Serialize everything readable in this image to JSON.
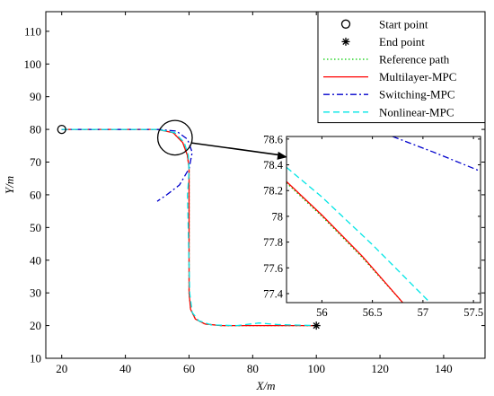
{
  "chart_data": {
    "type": "line",
    "xlabel": "X/m",
    "ylabel": "Y/m",
    "xlim": [
      15,
      153
    ],
    "ylim": [
      10,
      116
    ],
    "xticks": [
      20,
      40,
      60,
      80,
      100,
      120,
      140
    ],
    "yticks": [
      10,
      20,
      30,
      40,
      50,
      60,
      70,
      80,
      90,
      100,
      110
    ],
    "grid": false,
    "legend_position": "top-right",
    "legend": [
      {
        "label": "Start point",
        "marker": "circle",
        "color": "#000000"
      },
      {
        "label": "End point",
        "marker": "asterisk",
        "color": "#000000"
      },
      {
        "label": "Reference path",
        "style": "dotted",
        "color": "#00cc00"
      },
      {
        "label": "Multilayer-MPC",
        "style": "solid",
        "color": "#ff0000"
      },
      {
        "label": "Switching-MPC",
        "style": "dashdot",
        "color": "#0000cc"
      },
      {
        "label": "Nonlinear-MPC",
        "style": "dashed",
        "color": "#00e5e5"
      }
    ],
    "start_point": {
      "x": 20,
      "y": 80
    },
    "end_point": {
      "x": 100,
      "y": 20
    },
    "series": [
      {
        "name": "Reference path",
        "color": "#00cc00",
        "style": "dotted",
        "x": [
          20,
          50,
          55,
          58,
          59.5,
          60,
          60,
          60.5,
          62,
          65,
          70,
          100
        ],
        "y": [
          80,
          80,
          79,
          76,
          72,
          68,
          30,
          25,
          22,
          20.5,
          20,
          20
        ]
      },
      {
        "name": "Multilayer-MPC",
        "color": "#ff0000",
        "style": "solid",
        "x": [
          20,
          50,
          55,
          58,
          59.5,
          60,
          60,
          60.5,
          62,
          65,
          70,
          100
        ],
        "y": [
          80,
          80,
          79,
          76,
          72,
          68,
          30,
          25,
          22,
          20.5,
          20,
          20
        ]
      },
      {
        "name": "Switching-MPC",
        "color": "#0000cc",
        "style": "dashdot",
        "x": [
          20,
          50,
          56,
          59.5,
          61,
          60,
          57,
          53,
          50
        ],
        "y": [
          80,
          80,
          79.5,
          77,
          73,
          68,
          63,
          60,
          58
        ]
      },
      {
        "name": "Nonlinear-MPC",
        "color": "#00e5e5",
        "style": "dashed",
        "x": [
          20,
          50,
          55.5,
          58.5,
          59.8,
          60,
          59.5,
          60.2,
          61,
          63,
          67,
          75,
          82,
          88,
          100
        ],
        "y": [
          80,
          80,
          79,
          76,
          72,
          67,
          60,
          30,
          24,
          21.5,
          20.2,
          20,
          20.8,
          20.3,
          20
        ]
      }
    ],
    "zoom_region": {
      "center": [
        57,
        78
      ],
      "radius_x_units": 3.5
    },
    "inset": {
      "xlim": [
        55.65,
        57.57
      ],
      "ylim": [
        77.33,
        78.62
      ],
      "xticks": [
        56,
        56.5,
        57,
        57.5
      ],
      "yticks": [
        77.4,
        77.6,
        77.8,
        78,
        78.2,
        78.4,
        78.6
      ],
      "xtick_labels": [
        "56",
        "56.5",
        "57",
        "57.5"
      ],
      "ytick_labels": [
        "77.4",
        "77.6",
        "77.8",
        "78",
        "78.2",
        "78.4",
        "78.6"
      ],
      "series": [
        {
          "name": "Reference path",
          "color": "#00cc00",
          "style": "dotted",
          "x": [
            55.65,
            56.0,
            56.4,
            56.8
          ],
          "y": [
            78.26,
            78.0,
            77.68,
            77.33
          ]
        },
        {
          "name": "Multilayer-MPC",
          "color": "#ff0000",
          "style": "solid",
          "x": [
            55.65,
            56.0,
            56.4,
            56.8
          ],
          "y": [
            78.27,
            78.01,
            77.69,
            77.33
          ]
        },
        {
          "name": "Nonlinear-MPC",
          "color": "#00e5e5",
          "style": "dashed",
          "x": [
            55.65,
            56.0,
            56.5,
            57.07
          ],
          "y": [
            78.38,
            78.15,
            77.78,
            77.33
          ]
        },
        {
          "name": "Switching-MPC",
          "color": "#0000cc",
          "style": "dashdot",
          "x": [
            56.7,
            57.1,
            57.57
          ],
          "y": [
            78.62,
            78.5,
            78.35
          ]
        }
      ]
    }
  }
}
